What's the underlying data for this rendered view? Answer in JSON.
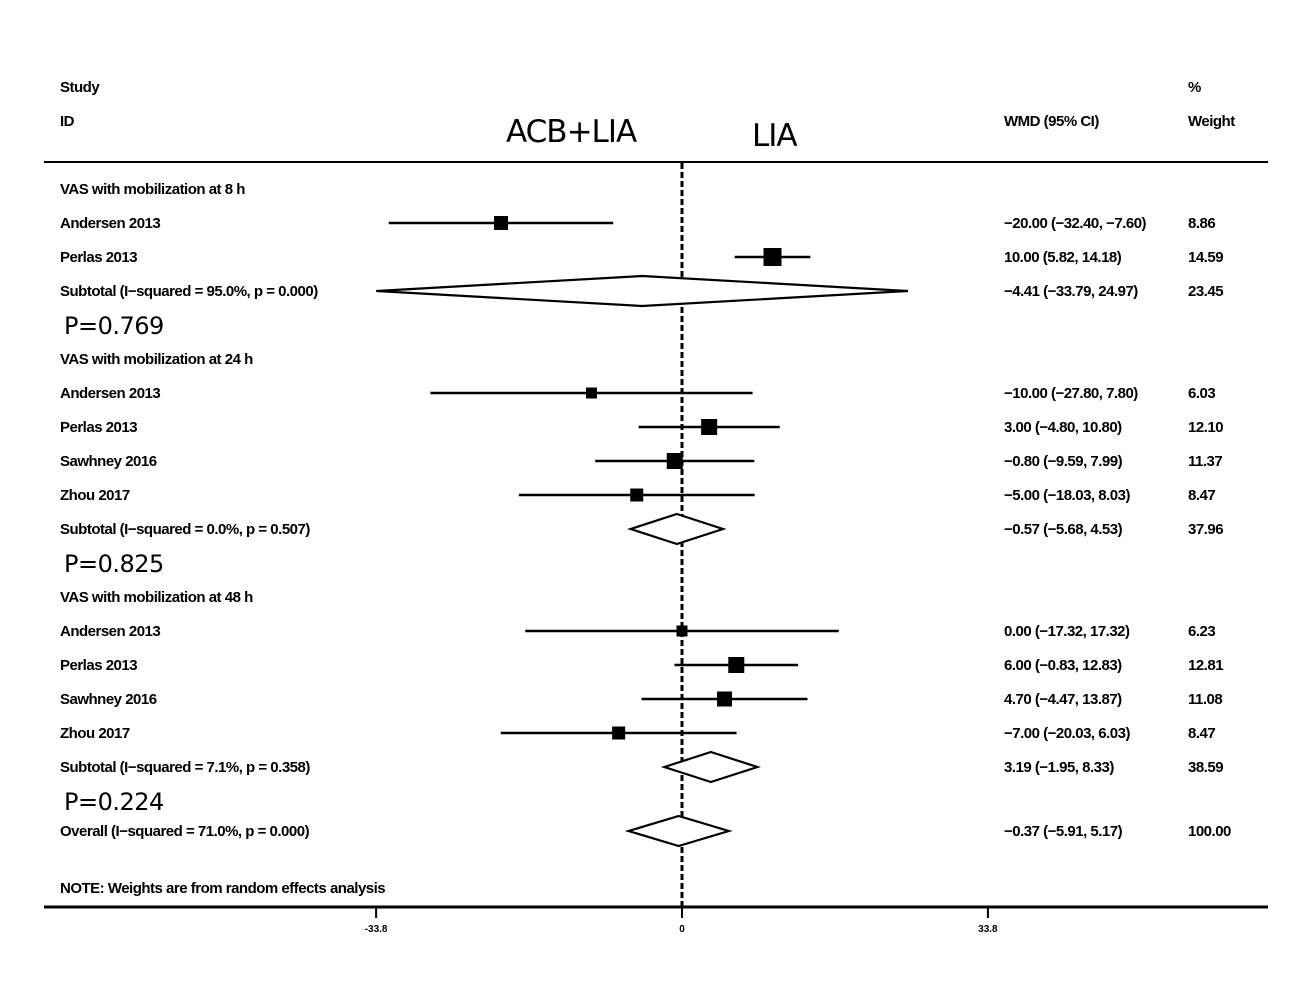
{
  "header": {
    "study_label_line1": "Study",
    "study_label_line2": "ID",
    "left_arm": "ACB+LIA",
    "right_arm": "LIA",
    "effect_label": "WMD (95% CI)",
    "weight_label_line1": "%",
    "weight_label_line2": "Weight"
  },
  "footnote": "NOTE: Weights are from random effects analysis",
  "chart_data": {
    "type": "forest",
    "effect_measure": "WMD (95% CI)",
    "x_ticks": [
      {
        "value": -33.8,
        "label": "-33.8"
      },
      {
        "value": 0,
        "label": "0"
      },
      {
        "value": 33.8,
        "label": "33.8"
      }
    ],
    "null_line": 0,
    "groups": [
      {
        "title": "VAS with mobilization at 8 h",
        "studies": [
          {
            "study": "Andersen 2013",
            "est": -20.0,
            "lo": -32.4,
            "hi": -7.6,
            "ci_text": "−20.00 (−32.40, −7.60)",
            "weight": "8.86"
          },
          {
            "study": "Perlas 2013",
            "est": 10.0,
            "lo": 5.82,
            "hi": 14.18,
            "ci_text": "10.00 (5.82, 14.18)",
            "weight": "14.59"
          }
        ],
        "subtotal": {
          "label": "Subtotal  (I−squared = 95.0%, p = 0.000)",
          "est": -4.41,
          "lo": -33.79,
          "hi": 24.97,
          "ci_text": "−4.41 (−33.79, 24.97)",
          "weight": "23.45"
        },
        "p_value": "P=0.769"
      },
      {
        "title": "VAS with mobilization at 24 h",
        "studies": [
          {
            "study": "Andersen 2013",
            "est": -10.0,
            "lo": -27.8,
            "hi": 7.8,
            "ci_text": "−10.00 (−27.80, 7.80)",
            "weight": "6.03"
          },
          {
            "study": "Perlas 2013",
            "est": 3.0,
            "lo": -4.8,
            "hi": 10.8,
            "ci_text": "3.00 (−4.80, 10.80)",
            "weight": "12.10"
          },
          {
            "study": "Sawhney 2016",
            "est": -0.8,
            "lo": -9.59,
            "hi": 7.99,
            "ci_text": "−0.80 (−9.59, 7.99)",
            "weight": "11.37"
          },
          {
            "study": "Zhou 2017",
            "est": -5.0,
            "lo": -18.03,
            "hi": 8.03,
            "ci_text": "−5.00 (−18.03, 8.03)",
            "weight": "8.47"
          }
        ],
        "subtotal": {
          "label": "Subtotal  (I−squared = 0.0%, p = 0.507)",
          "est": -0.57,
          "lo": -5.68,
          "hi": 4.53,
          "ci_text": "−0.57 (−5.68, 4.53)",
          "weight": "37.96"
        },
        "p_value": "P=0.825"
      },
      {
        "title": "VAS with mobilization at 48 h",
        "studies": [
          {
            "study": "Andersen 2013",
            "est": 0.0,
            "lo": -17.32,
            "hi": 17.32,
            "ci_text": "0.00 (−17.32, 17.32)",
            "weight": "6.23"
          },
          {
            "study": "Perlas 2013",
            "est": 6.0,
            "lo": -0.83,
            "hi": 12.83,
            "ci_text": "6.00 (−0.83, 12.83)",
            "weight": "12.81"
          },
          {
            "study": "Sawhney 2016",
            "est": 4.7,
            "lo": -4.47,
            "hi": 13.87,
            "ci_text": "4.70 (−4.47, 13.87)",
            "weight": "11.08"
          },
          {
            "study": "Zhou 2017",
            "est": -7.0,
            "lo": -20.03,
            "hi": 6.03,
            "ci_text": "−7.00 (−20.03, 6.03)",
            "weight": "8.47"
          }
        ],
        "subtotal": {
          "label": "Subtotal  (I−squared = 7.1%, p = 0.358)",
          "est": 3.19,
          "lo": -1.95,
          "hi": 8.33,
          "ci_text": "3.19 (−1.95, 8.33)",
          "weight": "38.59"
        },
        "p_value": "P=0.224"
      }
    ],
    "overall": {
      "label": "Overall  (I−squared = 71.0%, p = 0.000)",
      "est": -0.37,
      "lo": -5.91,
      "hi": 5.17,
      "ci_text": "−0.37 (−5.91, 5.17)",
      "weight": "100.00"
    }
  }
}
